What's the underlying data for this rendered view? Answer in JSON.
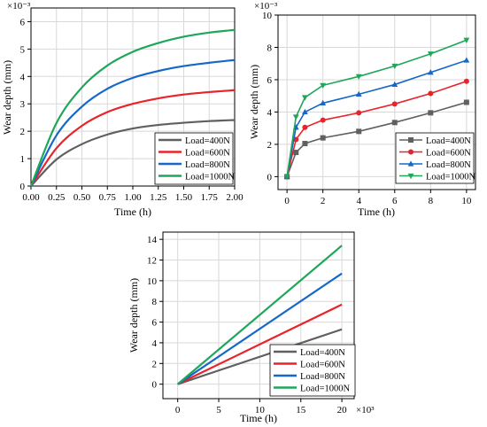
{
  "chart_data": [
    {
      "type": "line",
      "xlabel": "Time (h)",
      "ylabel": "Wear depth (mm)",
      "y_multiplier": "×10⁻³",
      "xlim": [
        0,
        2
      ],
      "ylim": [
        0,
        6.5
      ],
      "x_ticks": [
        "0.00",
        "0.25",
        "0.50",
        "0.75",
        "1.00",
        "1.25",
        "1.50",
        "1.75",
        "2.00"
      ],
      "y_ticks": [
        "0",
        "1",
        "2",
        "3",
        "4",
        "5",
        "6"
      ],
      "grid": true,
      "legend_position": "bottom-right",
      "markers": false,
      "series": [
        {
          "name": "Load=400N",
          "color": "#606060",
          "x": [
            0,
            0.25,
            0.5,
            0.75,
            1.0,
            1.25,
            1.5,
            1.75,
            2.0
          ],
          "values": [
            0,
            0.97,
            1.53,
            1.88,
            2.1,
            2.23,
            2.31,
            2.37,
            2.41
          ]
        },
        {
          "name": "Load=600N",
          "color": "#e8232a",
          "x": [
            0,
            0.25,
            0.5,
            0.75,
            1.0,
            1.25,
            1.5,
            1.75,
            2.0
          ],
          "values": [
            0,
            1.38,
            2.2,
            2.7,
            3.0,
            3.2,
            3.34,
            3.43,
            3.5
          ]
        },
        {
          "name": "Load=800N",
          "color": "#1668c8",
          "x": [
            0,
            0.25,
            0.5,
            0.75,
            1.0,
            1.25,
            1.5,
            1.75,
            2.0
          ],
          "values": [
            0,
            1.85,
            2.9,
            3.55,
            3.95,
            4.2,
            4.38,
            4.5,
            4.6
          ]
        },
        {
          "name": "Load=1000N",
          "color": "#1fa65a",
          "x": [
            0,
            0.25,
            0.5,
            0.75,
            1.0,
            1.25,
            1.5,
            1.75,
            2.0
          ],
          "values": [
            0,
            2.3,
            3.6,
            4.4,
            4.9,
            5.22,
            5.45,
            5.6,
            5.7
          ]
        }
      ]
    },
    {
      "type": "line",
      "xlabel": "Time (h)",
      "ylabel": "Wear depth (mm)",
      "y_multiplier": "×10⁻³",
      "xlim": [
        -0.5,
        10.5
      ],
      "ylim": [
        -0.8,
        10
      ],
      "x_ticks": [
        "0",
        "2",
        "4",
        "6",
        "8",
        "10"
      ],
      "y_ticks": [
        "0",
        "2",
        "4",
        "6",
        "8",
        "10"
      ],
      "grid": true,
      "legend_position": "bottom-right",
      "markers": true,
      "series": [
        {
          "name": "Load=400N",
          "color": "#606060",
          "marker": "square",
          "x": [
            0,
            0.5,
            1,
            2,
            4,
            6,
            8,
            10
          ],
          "values": [
            0,
            1.5,
            2.05,
            2.4,
            2.8,
            3.35,
            3.95,
            4.6
          ]
        },
        {
          "name": "Load=600N",
          "color": "#e8232a",
          "marker": "circle",
          "x": [
            0,
            0.5,
            1,
            2,
            4,
            6,
            8,
            10
          ],
          "values": [
            0,
            2.3,
            3.05,
            3.5,
            3.95,
            4.5,
            5.15,
            5.9
          ]
        },
        {
          "name": "Load=800N",
          "color": "#1668c8",
          "marker": "triangle-up",
          "x": [
            0,
            0.5,
            1,
            2,
            4,
            6,
            8,
            10
          ],
          "values": [
            0,
            3.05,
            4.0,
            4.55,
            5.1,
            5.7,
            6.45,
            7.2
          ]
        },
        {
          "name": "Load=1000N",
          "color": "#1fa65a",
          "marker": "triangle-down",
          "x": [
            0,
            0.5,
            1,
            2,
            4,
            6,
            8,
            10
          ],
          "values": [
            0,
            3.7,
            4.9,
            5.65,
            6.2,
            6.85,
            7.6,
            8.45
          ]
        }
      ]
    },
    {
      "type": "line",
      "xlabel": "Time (h)",
      "ylabel": "Wear depth (mm)",
      "x_multiplier": "×10³",
      "xlim": [
        -1.8,
        21.5
      ],
      "ylim": [
        -1.4,
        14.7
      ],
      "x_ticks": [
        "0",
        "5",
        "10",
        "15",
        "20"
      ],
      "y_ticks": [
        "0",
        "2",
        "4",
        "6",
        "8",
        "10",
        "12",
        "14"
      ],
      "grid": true,
      "legend_position": "bottom-right",
      "markers": false,
      "series": [
        {
          "name": "Load=400N",
          "color": "#606060",
          "x": [
            0,
            20
          ],
          "values": [
            0,
            5.3
          ]
        },
        {
          "name": "Load=600N",
          "color": "#e8232a",
          "x": [
            0,
            20
          ],
          "values": [
            0,
            7.7
          ]
        },
        {
          "name": "Load=800N",
          "color": "#1668c8",
          "x": [
            0,
            20
          ],
          "values": [
            0,
            10.7
          ]
        },
        {
          "name": "Load=1000N",
          "color": "#1fa65a",
          "x": [
            0,
            20
          ],
          "values": [
            0,
            13.4
          ]
        }
      ]
    }
  ]
}
